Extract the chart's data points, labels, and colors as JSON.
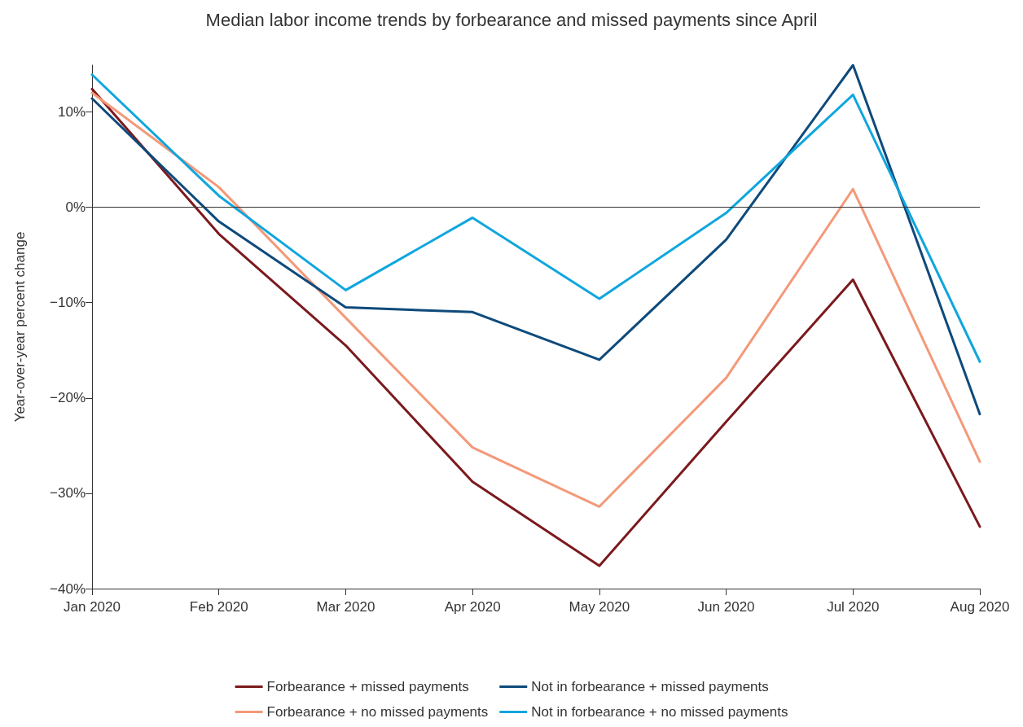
{
  "chart_data": {
    "type": "line",
    "title": "Median labor income trends by forbearance and missed payments since April",
    "ylabel": "Year-over-year percent change",
    "categories": [
      "Jan 2020",
      "Feb 2020",
      "Mar 2020",
      "Apr 2020",
      "May 2020",
      "Jun 2020",
      "Jul 2020",
      "Aug 2020"
    ],
    "series": [
      {
        "name": "Forbearance + missed payments",
        "color": "#7b1a1e",
        "values": [
          12.4,
          -2.8,
          -14.5,
          -28.8,
          -37.6,
          -22.5,
          -7.6,
          -33.5
        ]
      },
      {
        "name": "Forbearance + no missed payments",
        "color": "#f4997a",
        "values": [
          12.0,
          2.1,
          -11.6,
          -25.2,
          -31.4,
          -17.9,
          1.9,
          -26.7
        ]
      },
      {
        "name": "Not in forbearance + missed payments",
        "color": "#0e4a7b",
        "values": [
          11.4,
          -1.5,
          -10.5,
          -11.0,
          -16.0,
          -3.4,
          14.9,
          -21.7
        ]
      },
      {
        "name": "Not in forbearance + no missed payments",
        "color": "#10a6de",
        "values": [
          13.9,
          1.2,
          -8.7,
          -1.1,
          -9.6,
          -0.6,
          11.8,
          -16.2
        ]
      }
    ],
    "ylim": [
      -40,
      14.9
    ],
    "yticks": [
      {
        "value": -40,
        "label": "−40%"
      },
      {
        "value": -30,
        "label": "−30%"
      },
      {
        "value": -20,
        "label": "−20%"
      },
      {
        "value": -10,
        "label": "−10%"
      },
      {
        "value": 0,
        "label": "0%"
      },
      {
        "value": 10,
        "label": "10%"
      }
    ],
    "ref_lines": [
      {
        "axis": "y",
        "value": 0,
        "color": "#333333"
      }
    ],
    "grid": false,
    "legend": "bottom",
    "marker": "none",
    "line_style": "solid"
  }
}
